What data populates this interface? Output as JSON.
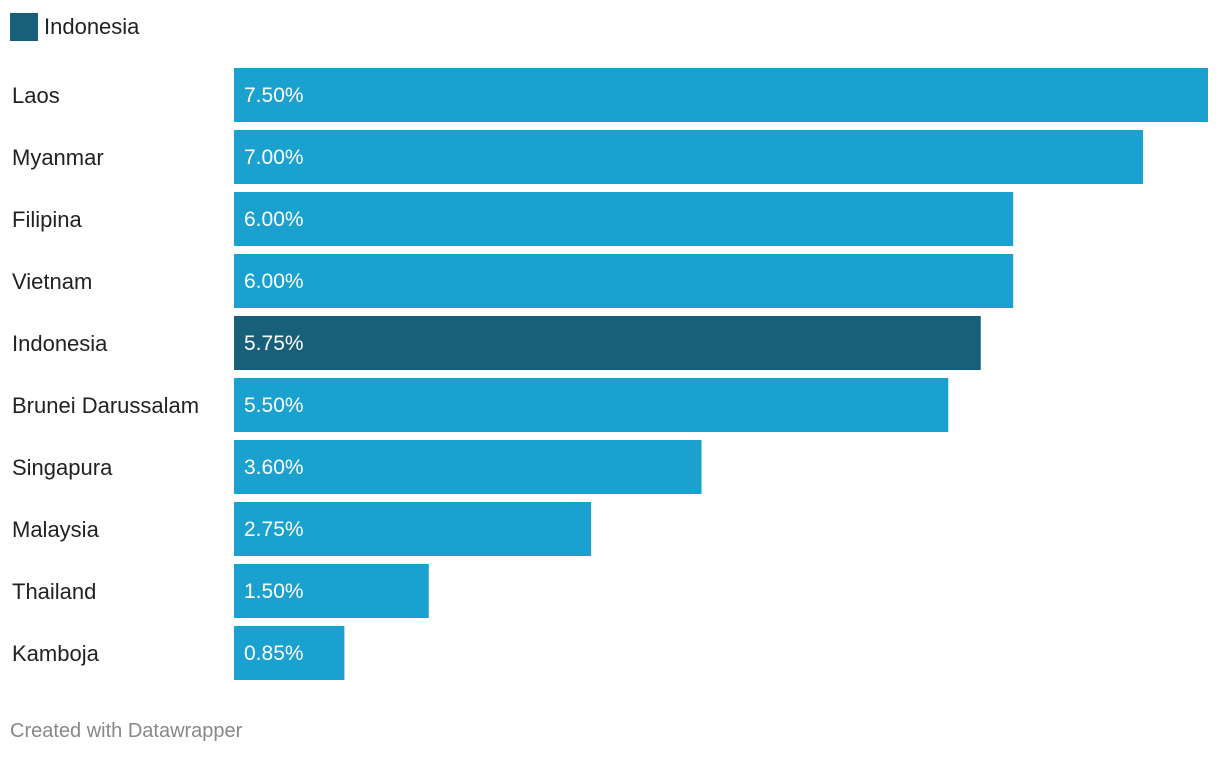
{
  "chart_data": {
    "type": "bar",
    "orientation": "horizontal",
    "categories": [
      "Laos",
      "Myanmar",
      "Filipina",
      "Vietnam",
      "Indonesia",
      "Brunei Darussalam",
      "Singapura",
      "Malaysia",
      "Thailand",
      "Kamboja"
    ],
    "values": [
      7.5,
      7.0,
      6.0,
      6.0,
      5.75,
      5.5,
      3.6,
      2.75,
      1.5,
      0.85
    ],
    "value_labels": [
      "7.50%",
      "7.00%",
      "6.00%",
      "6.00%",
      "5.75%",
      "5.50%",
      "3.60%",
      "2.75%",
      "1.50%",
      "0.85%"
    ],
    "highlight": "Indonesia",
    "legend": [
      "Indonesia"
    ],
    "legend_position": "top-left",
    "grid": false,
    "xlim": [
      0,
      7.5
    ],
    "colors": {
      "bar": "#1aa1cf",
      "highlight": "#176079"
    }
  },
  "footer": {
    "credit": "Created with Datawrapper"
  }
}
